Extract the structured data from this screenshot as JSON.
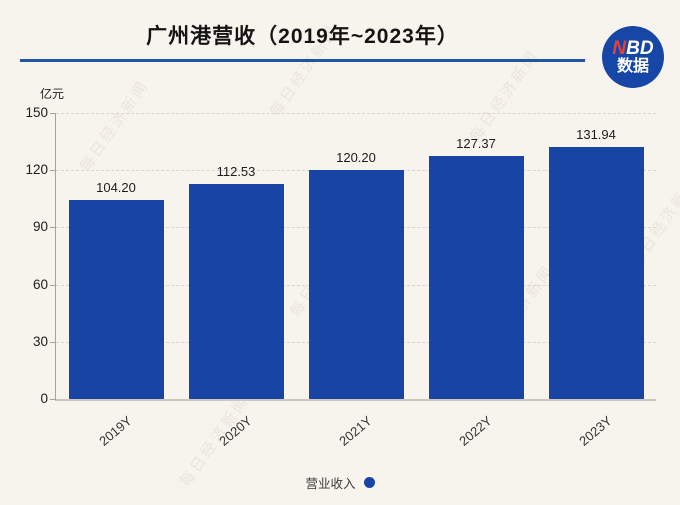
{
  "header": {
    "title": "广州港营收（2019年~2023年）",
    "logo": {
      "n": "N",
      "bd": "BD",
      "line2": "数据"
    }
  },
  "watermark": {
    "text": "每日经济新闻"
  },
  "chart_data": {
    "type": "bar",
    "title": "广州港营收（2019年~2023年）",
    "unit_label": "亿元",
    "ylabel": "亿元",
    "xlabel": "",
    "categories": [
      "2019Y",
      "2020Y",
      "2021Y",
      "2022Y",
      "2023Y"
    ],
    "values": [
      104.2,
      112.53,
      120.2,
      127.37,
      131.94
    ],
    "value_labels": [
      "104.20",
      "112.53",
      "120.20",
      "127.37",
      "131.94"
    ],
    "series_name": "营业收入",
    "ylim": [
      0,
      150
    ],
    "yticks": [
      0,
      30,
      60,
      90,
      120,
      150
    ],
    "grid": "dashed-horizontal",
    "bar_color": "#1844a5",
    "background_color": "#f7f4ed",
    "legend": {
      "label": "营业收入",
      "position": "bottom-center"
    }
  }
}
